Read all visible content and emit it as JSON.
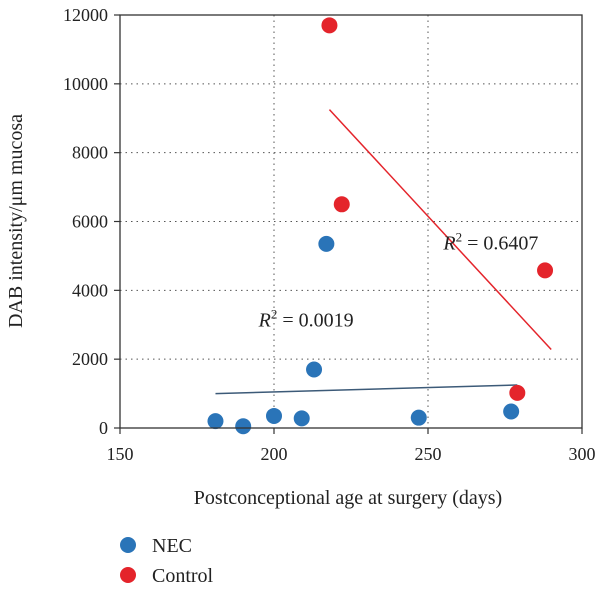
{
  "chart_data": {
    "type": "scatter",
    "title": "",
    "xlabel": "Postconceptional age at surgery (days)",
    "ylabel": "DAB intensity/μm mucosa",
    "xlim": [
      150,
      300
    ],
    "ylim": [
      0,
      12000
    ],
    "xticks": [
      150,
      200,
      250,
      300
    ],
    "yticks": [
      0,
      2000,
      4000,
      6000,
      8000,
      10000,
      12000
    ],
    "grid": "dotted, at major ticks",
    "legend_position": "bottom-left, below plot",
    "series": [
      {
        "name": "NEC",
        "color": "#2a74b8",
        "points": [
          {
            "x": 181,
            "y": 200
          },
          {
            "x": 190,
            "y": 50
          },
          {
            "x": 200,
            "y": 350
          },
          {
            "x": 209,
            "y": 280
          },
          {
            "x": 213,
            "y": 1700
          },
          {
            "x": 217,
            "y": 5350
          },
          {
            "x": 247,
            "y": 300
          },
          {
            "x": 277,
            "y": 480
          }
        ],
        "fit": {
          "x": [
            181,
            279
          ],
          "y": [
            1000,
            1250
          ]
        },
        "r2_text": "= 0.0019",
        "r2_at": {
          "x": 195,
          "y": 2950
        }
      },
      {
        "name": "Control",
        "color": "#e4242b",
        "points": [
          {
            "x": 218,
            "y": 11700
          },
          {
            "x": 222,
            "y": 6500
          },
          {
            "x": 279,
            "y": 1020
          },
          {
            "x": 288,
            "y": 4580
          }
        ],
        "fit": {
          "x": [
            218,
            290
          ],
          "y": [
            9250,
            2280
          ]
        },
        "r2_text": "= 0.6407",
        "r2_at": {
          "x": 255,
          "y": 5180
        }
      }
    ]
  },
  "r2_label": {
    "letter": "R",
    "exponent": "2"
  },
  "legend": [
    {
      "label": "NEC",
      "color": "#2a74b8"
    },
    {
      "label": "Control",
      "color": "#e4242b"
    }
  ]
}
